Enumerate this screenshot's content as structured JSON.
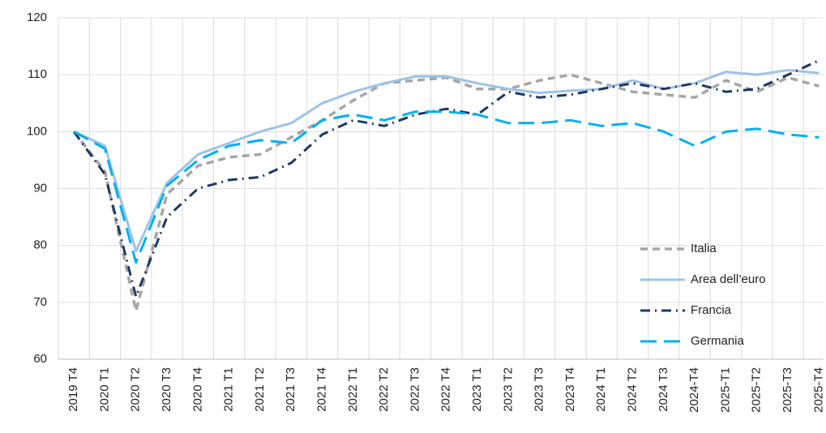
{
  "chart_data": {
    "type": "line",
    "categories": [
      "2019 T4",
      "2020 T1",
      "2020 T2",
      "2020 T3",
      "2020 T4",
      "2021 T1",
      "2021 T2",
      "2021 T3",
      "2021 T4",
      "2022 T1",
      "2022 T2",
      "2022 T3",
      "2022 T4",
      "2023 T1",
      "2023 T2",
      "2023 T3",
      "2023 T4",
      "2024 T1",
      "2024 T2",
      "2024 T3",
      "2024-T4",
      "2025-T1",
      "2025-T2",
      "2025-T3",
      "2025-T4"
    ],
    "series": [
      {
        "name": "Italia",
        "color": "#a6a6a6",
        "dash": "9 6",
        "width": 3.5,
        "values": [
          100,
          93,
          68.5,
          89,
          94,
          95.5,
          96,
          99,
          102,
          105.5,
          108.5,
          109,
          109.5,
          107.5,
          107.5,
          109,
          110,
          108.5,
          107,
          106.5,
          106,
          109,
          107,
          109.5,
          108
        ]
      },
      {
        "name": "Area dell’euro",
        "color": "#9dc3e6",
        "dash": "none",
        "width": 3,
        "values": [
          100,
          97.5,
          79,
          91,
          96,
          98,
          100,
          101.5,
          105,
          107,
          108.5,
          109.7,
          109.7,
          108.5,
          107.5,
          106.8,
          107.2,
          107.5,
          109,
          107.5,
          108.5,
          110.5,
          110,
          110.8,
          110.3
        ]
      },
      {
        "name": "Francia",
        "color": "#1f3864",
        "dash": "12 6 2 6",
        "width": 3,
        "values": [
          100,
          92.5,
          71,
          85,
          90,
          91.5,
          92,
          94.5,
          99.5,
          102,
          101,
          103,
          104,
          103,
          107,
          106,
          106.5,
          107.5,
          108.5,
          107.5,
          108.5,
          107,
          107.5,
          110,
          112.5
        ]
      },
      {
        "name": "Germania",
        "color": "#00b0f0",
        "dash": "20 9",
        "width": 3,
        "values": [
          100,
          97,
          77,
          90.5,
          95,
          97.5,
          98.5,
          98,
          102,
          103,
          102,
          103.5,
          103.5,
          103,
          101.5,
          101.5,
          102,
          101,
          101.5,
          100,
          97.5,
          100,
          100.5,
          99.5,
          99
        ]
      }
    ],
    "ylim": [
      60,
      120
    ],
    "yticks": [
      60,
      70,
      80,
      90,
      100,
      110,
      120
    ],
    "grid": true,
    "legend": "lower right"
  }
}
